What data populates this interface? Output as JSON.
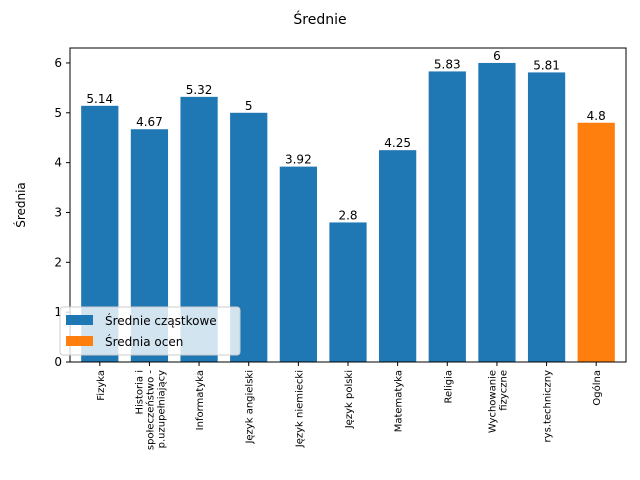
{
  "chart_data": {
    "type": "bar",
    "title": "Średnie",
    "xlabel": "",
    "ylabel": "Średnia",
    "ylim": [
      0,
      6.3
    ],
    "yticks": [
      0,
      1,
      2,
      3,
      4,
      5,
      6
    ],
    "grid": false,
    "legend_position": "lower-left",
    "categories": [
      [
        "Fizyka"
      ],
      [
        "Historia i",
        "społeczeństwo -",
        "p.uzupełniający"
      ],
      [
        "Informatyka"
      ],
      [
        "Język angielski"
      ],
      [
        "Język niemiecki"
      ],
      [
        "Język polski"
      ],
      [
        "Matematyka"
      ],
      [
        "Religia"
      ],
      [
        "Wychowanie",
        "fizyczne"
      ],
      [
        "rys.techniczny"
      ],
      [
        "Ogólna"
      ]
    ],
    "values": [
      5.14,
      4.67,
      5.32,
      5,
      3.92,
      2.8,
      4.25,
      5.83,
      6,
      5.81,
      4.8
    ],
    "value_labels": [
      "5.14",
      "4.67",
      "5.32",
      "5",
      "3.92",
      "2.8",
      "4.25",
      "5.83",
      "6",
      "5.81",
      "4.8"
    ],
    "series_of_bar": [
      0,
      0,
      0,
      0,
      0,
      0,
      0,
      0,
      0,
      0,
      1
    ],
    "series": [
      {
        "name": "Średnie cząstkowe",
        "color": "#1f77b4"
      },
      {
        "name": "Średnia ocen",
        "color": "#ff7f0e"
      }
    ]
  }
}
